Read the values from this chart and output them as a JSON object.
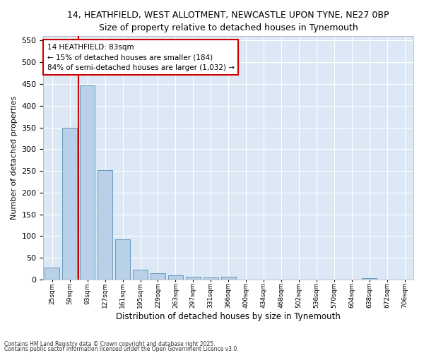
{
  "title_line1": "14, HEATHFIELD, WEST ALLOTMENT, NEWCASTLE UPON TYNE, NE27 0BP",
  "title_line2": "Size of property relative to detached houses in Tynemouth",
  "xlabel": "Distribution of detached houses by size in Tynemouth",
  "ylabel": "Number of detached properties",
  "categories": [
    "25sqm",
    "59sqm",
    "93sqm",
    "127sqm",
    "161sqm",
    "195sqm",
    "229sqm",
    "263sqm",
    "297sqm",
    "331sqm",
    "366sqm",
    "400sqm",
    "434sqm",
    "468sqm",
    "502sqm",
    "536sqm",
    "570sqm",
    "604sqm",
    "638sqm",
    "672sqm",
    "706sqm"
  ],
  "values": [
    27,
    350,
    447,
    252,
    92,
    22,
    15,
    10,
    7,
    5,
    6,
    0,
    0,
    0,
    0,
    0,
    0,
    0,
    3,
    0,
    0
  ],
  "bar_color": "#b8d0e8",
  "bar_edge_color": "#6699bb",
  "bg_color": "#dce8f5",
  "grid_color": "#ffffff",
  "vline_color": "#cc0000",
  "vline_xindex": 1.5,
  "annotation_text": "14 HEATHFIELD: 83sqm\n← 15% of detached houses are smaller (184)\n84% of semi-detached houses are larger (1,032) →",
  "annotation_box_color": "#ffffff",
  "annotation_box_edge": "#cc0000",
  "footer_line1": "Contains HM Land Registry data © Crown copyright and database right 2025.",
  "footer_line2": "Contains public sector information licensed under the Open Government Licence v3.0.",
  "ylim": [
    0,
    560
  ],
  "yticks": [
    0,
    50,
    100,
    150,
    200,
    250,
    300,
    350,
    400,
    450,
    500,
    550
  ],
  "fig_width": 6.0,
  "fig_height": 5.0,
  "fig_dpi": 100
}
